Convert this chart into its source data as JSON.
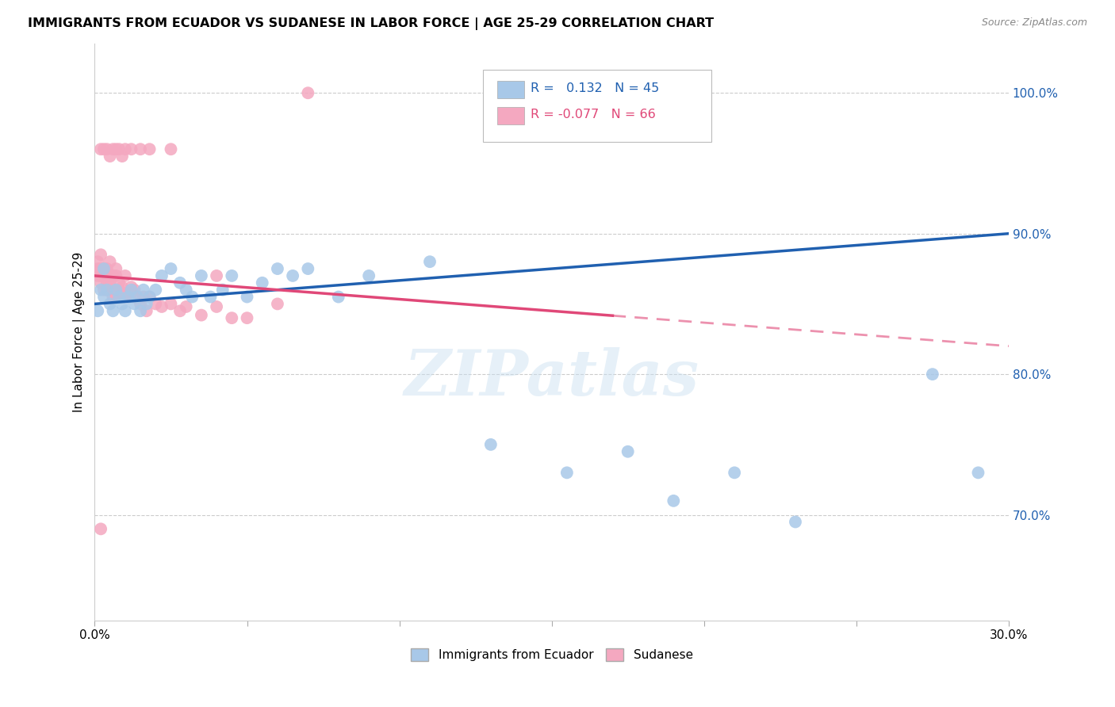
{
  "title": "IMMIGRANTS FROM ECUADOR VS SUDANESE IN LABOR FORCE | AGE 25-29 CORRELATION CHART",
  "source": "Source: ZipAtlas.com",
  "ylabel": "In Labor Force | Age 25-29",
  "ylabel_right_ticks": [
    "70.0%",
    "80.0%",
    "90.0%",
    "100.0%"
  ],
  "ylabel_right_vals": [
    0.7,
    0.8,
    0.9,
    1.0
  ],
  "xlim": [
    0.0,
    0.3
  ],
  "ylim": [
    0.625,
    1.035
  ],
  "legend_blue_r": "0.132",
  "legend_blue_n": "45",
  "legend_pink_r": "-0.077",
  "legend_pink_n": "66",
  "blue_color": "#a8c8e8",
  "pink_color": "#f4a8c0",
  "blue_line_color": "#2060b0",
  "pink_line_color": "#e04878",
  "watermark": "ZIPatlas",
  "blue_x": [
    0.001,
    0.002,
    0.003,
    0.003,
    0.004,
    0.005,
    0.006,
    0.007,
    0.008,
    0.009,
    0.01,
    0.011,
    0.012,
    0.013,
    0.014,
    0.015,
    0.016,
    0.017,
    0.018,
    0.02,
    0.022,
    0.025,
    0.028,
    0.03,
    0.032,
    0.035,
    0.038,
    0.042,
    0.045,
    0.05,
    0.055,
    0.06,
    0.065,
    0.07,
    0.08,
    0.09,
    0.11,
    0.13,
    0.155,
    0.175,
    0.19,
    0.21,
    0.23,
    0.275,
    0.29
  ],
  "blue_y": [
    0.845,
    0.86,
    0.875,
    0.855,
    0.86,
    0.85,
    0.845,
    0.86,
    0.855,
    0.85,
    0.845,
    0.855,
    0.86,
    0.85,
    0.855,
    0.845,
    0.86,
    0.85,
    0.855,
    0.86,
    0.87,
    0.875,
    0.865,
    0.86,
    0.855,
    0.87,
    0.855,
    0.86,
    0.87,
    0.855,
    0.865,
    0.875,
    0.87,
    0.875,
    0.855,
    0.87,
    0.88,
    0.75,
    0.73,
    0.745,
    0.71,
    0.73,
    0.695,
    0.8,
    0.73
  ],
  "pink_x": [
    0.001,
    0.001,
    0.001,
    0.002,
    0.002,
    0.002,
    0.002,
    0.003,
    0.003,
    0.003,
    0.004,
    0.004,
    0.004,
    0.004,
    0.005,
    0.005,
    0.005,
    0.005,
    0.006,
    0.006,
    0.006,
    0.007,
    0.007,
    0.007,
    0.007,
    0.008,
    0.008,
    0.009,
    0.009,
    0.01,
    0.01,
    0.011,
    0.012,
    0.012,
    0.013,
    0.013,
    0.015,
    0.016,
    0.017,
    0.018,
    0.02,
    0.022,
    0.025,
    0.028,
    0.03,
    0.035,
    0.04,
    0.045,
    0.05,
    0.06,
    0.002,
    0.003,
    0.004,
    0.005,
    0.006,
    0.007,
    0.008,
    0.009,
    0.01,
    0.012,
    0.015,
    0.018,
    0.025,
    0.04,
    0.002,
    0.07
  ],
  "pink_y": [
    0.87,
    0.875,
    0.88,
    0.87,
    0.875,
    0.865,
    0.885,
    0.875,
    0.87,
    0.86,
    0.87,
    0.865,
    0.875,
    0.86,
    0.87,
    0.86,
    0.865,
    0.88,
    0.86,
    0.855,
    0.87,
    0.855,
    0.86,
    0.87,
    0.875,
    0.86,
    0.865,
    0.858,
    0.862,
    0.855,
    0.87,
    0.855,
    0.858,
    0.862,
    0.86,
    0.855,
    0.85,
    0.855,
    0.845,
    0.855,
    0.85,
    0.848,
    0.85,
    0.845,
    0.848,
    0.842,
    0.848,
    0.84,
    0.84,
    0.85,
    0.96,
    0.96,
    0.96,
    0.955,
    0.96,
    0.96,
    0.96,
    0.955,
    0.96,
    0.96,
    0.96,
    0.96,
    0.96,
    0.87,
    0.69,
    1.0
  ],
  "blue_line_x0": 0.0,
  "blue_line_y0": 0.85,
  "blue_line_x1": 0.3,
  "blue_line_y1": 0.9,
  "pink_line_x0": 0.0,
  "pink_line_y0": 0.87,
  "pink_line_x1": 0.3,
  "pink_line_y1": 0.82
}
